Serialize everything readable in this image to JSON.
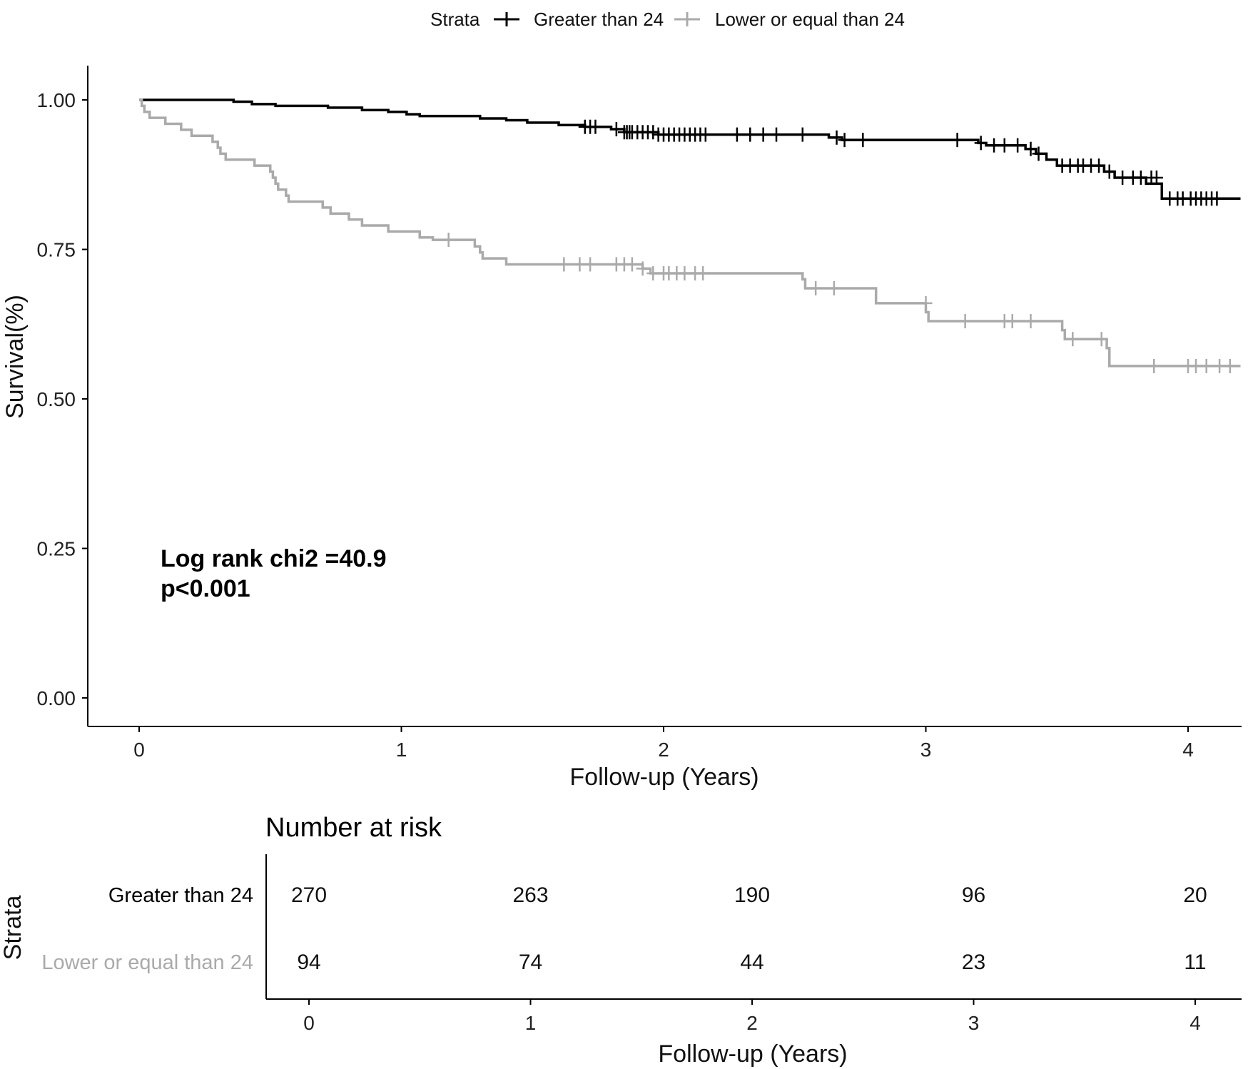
{
  "chart_data": {
    "type": "line",
    "subtype": "kaplan-meier",
    "legend": {
      "title": "Strata",
      "placement": "top",
      "entries": [
        "Greater than 24",
        "Lower or equal than 24"
      ]
    },
    "ylabel": "Survival(%)",
    "xlabel": "Follow-up (Years)",
    "xlim": [
      -0.2,
      4.2
    ],
    "ylim": [
      -0.05,
      1.05
    ],
    "x_ticks": [
      "0",
      "1",
      "2",
      "3",
      "4"
    ],
    "y_ticks": [
      "0.00",
      "0.25",
      "0.50",
      "0.75",
      "1.00"
    ],
    "series": [
      {
        "name": "Greater than 24",
        "color": "#000000",
        "steps": [
          [
            0,
            1.0
          ],
          [
            0.36,
            0.997
          ],
          [
            0.43,
            0.993
          ],
          [
            0.52,
            0.99
          ],
          [
            0.72,
            0.987
          ],
          [
            0.85,
            0.983
          ],
          [
            0.95,
            0.98
          ],
          [
            1.02,
            0.976
          ],
          [
            1.07,
            0.973
          ],
          [
            1.3,
            0.969
          ],
          [
            1.4,
            0.966
          ],
          [
            1.48,
            0.962
          ],
          [
            1.6,
            0.958
          ],
          [
            1.7,
            0.955
          ],
          [
            1.8,
            0.951
          ],
          [
            1.85,
            0.946
          ],
          [
            1.98,
            0.942
          ],
          [
            2.55,
            0.942
          ],
          [
            2.63,
            0.937
          ],
          [
            2.68,
            0.933
          ],
          [
            3.2,
            0.928
          ],
          [
            3.23,
            0.924
          ],
          [
            3.38,
            0.918
          ],
          [
            3.42,
            0.91
          ],
          [
            3.46,
            0.9
          ],
          [
            3.5,
            0.89
          ],
          [
            3.68,
            0.88
          ],
          [
            3.72,
            0.87
          ],
          [
            3.84,
            0.86
          ],
          [
            3.9,
            0.835
          ],
          [
            4.2,
            0.835
          ]
        ],
        "censored": [
          [
            1.7,
            0.955
          ],
          [
            1.72,
            0.955
          ],
          [
            1.74,
            0.955
          ],
          [
            1.82,
            0.951
          ],
          [
            1.85,
            0.946
          ],
          [
            1.86,
            0.946
          ],
          [
            1.87,
            0.946
          ],
          [
            1.88,
            0.946
          ],
          [
            1.9,
            0.946
          ],
          [
            1.92,
            0.946
          ],
          [
            1.94,
            0.946
          ],
          [
            1.96,
            0.946
          ],
          [
            1.98,
            0.942
          ],
          [
            2.0,
            0.942
          ],
          [
            2.02,
            0.942
          ],
          [
            2.04,
            0.942
          ],
          [
            2.06,
            0.942
          ],
          [
            2.08,
            0.942
          ],
          [
            2.1,
            0.942
          ],
          [
            2.12,
            0.942
          ],
          [
            2.14,
            0.942
          ],
          [
            2.16,
            0.942
          ],
          [
            2.28,
            0.942
          ],
          [
            2.33,
            0.942
          ],
          [
            2.38,
            0.942
          ],
          [
            2.43,
            0.942
          ],
          [
            2.53,
            0.942
          ],
          [
            2.66,
            0.937
          ],
          [
            2.69,
            0.933
          ],
          [
            2.76,
            0.933
          ],
          [
            3.12,
            0.933
          ],
          [
            3.21,
            0.928
          ],
          [
            3.26,
            0.924
          ],
          [
            3.3,
            0.924
          ],
          [
            3.35,
            0.924
          ],
          [
            3.4,
            0.918
          ],
          [
            3.43,
            0.91
          ],
          [
            3.52,
            0.89
          ],
          [
            3.55,
            0.89
          ],
          [
            3.58,
            0.89
          ],
          [
            3.6,
            0.89
          ],
          [
            3.63,
            0.89
          ],
          [
            3.66,
            0.89
          ],
          [
            3.7,
            0.88
          ],
          [
            3.75,
            0.87
          ],
          [
            3.79,
            0.87
          ],
          [
            3.82,
            0.87
          ],
          [
            3.86,
            0.87
          ],
          [
            3.88,
            0.87
          ],
          [
            3.93,
            0.835
          ],
          [
            3.96,
            0.835
          ],
          [
            3.98,
            0.835
          ],
          [
            4.01,
            0.835
          ],
          [
            4.03,
            0.835
          ],
          [
            4.05,
            0.835
          ],
          [
            4.07,
            0.835
          ],
          [
            4.09,
            0.835
          ],
          [
            4.11,
            0.835
          ]
        ]
      },
      {
        "name": "Lower or equal than 24",
        "color": "#aaaaaa",
        "steps": [
          [
            0,
            1.0
          ],
          [
            0.01,
            0.99
          ],
          [
            0.02,
            0.98
          ],
          [
            0.04,
            0.97
          ],
          [
            0.1,
            0.96
          ],
          [
            0.16,
            0.95
          ],
          [
            0.2,
            0.94
          ],
          [
            0.28,
            0.93
          ],
          [
            0.3,
            0.92
          ],
          [
            0.31,
            0.91
          ],
          [
            0.33,
            0.9
          ],
          [
            0.44,
            0.89
          ],
          [
            0.5,
            0.88
          ],
          [
            0.51,
            0.87
          ],
          [
            0.52,
            0.86
          ],
          [
            0.53,
            0.85
          ],
          [
            0.56,
            0.84
          ],
          [
            0.57,
            0.83
          ],
          [
            0.7,
            0.82
          ],
          [
            0.73,
            0.81
          ],
          [
            0.8,
            0.8
          ],
          [
            0.85,
            0.79
          ],
          [
            0.95,
            0.78
          ],
          [
            1.07,
            0.77
          ],
          [
            1.12,
            0.766
          ],
          [
            1.28,
            0.755
          ],
          [
            1.3,
            0.745
          ],
          [
            1.31,
            0.735
          ],
          [
            1.4,
            0.725
          ],
          [
            1.92,
            0.718
          ],
          [
            1.95,
            0.71
          ],
          [
            2.53,
            0.7
          ],
          [
            2.54,
            0.685
          ],
          [
            2.81,
            0.66
          ],
          [
            3.0,
            0.645
          ],
          [
            3.01,
            0.63
          ],
          [
            3.52,
            0.615
          ],
          [
            3.53,
            0.6
          ],
          [
            3.69,
            0.585
          ],
          [
            3.7,
            0.555
          ],
          [
            4.2,
            0.555
          ]
        ],
        "censored": [
          [
            1.18,
            0.766
          ],
          [
            1.62,
            0.725
          ],
          [
            1.68,
            0.725
          ],
          [
            1.72,
            0.725
          ],
          [
            1.82,
            0.725
          ],
          [
            1.85,
            0.725
          ],
          [
            1.88,
            0.725
          ],
          [
            1.92,
            0.718
          ],
          [
            1.96,
            0.71
          ],
          [
            2.0,
            0.71
          ],
          [
            2.02,
            0.71
          ],
          [
            2.05,
            0.71
          ],
          [
            2.08,
            0.71
          ],
          [
            2.12,
            0.71
          ],
          [
            2.15,
            0.71
          ],
          [
            2.58,
            0.685
          ],
          [
            2.65,
            0.685
          ],
          [
            3.0,
            0.66
          ],
          [
            3.15,
            0.63
          ],
          [
            3.3,
            0.63
          ],
          [
            3.33,
            0.63
          ],
          [
            3.4,
            0.63
          ],
          [
            3.56,
            0.6
          ],
          [
            3.67,
            0.6
          ],
          [
            3.87,
            0.555
          ],
          [
            4.0,
            0.555
          ],
          [
            4.03,
            0.555
          ],
          [
            4.07,
            0.555
          ],
          [
            4.12,
            0.555
          ],
          [
            4.16,
            0.555
          ]
        ]
      }
    ],
    "annotations": [
      "Log rank chi2 =40.9",
      "p<0.001"
    ]
  },
  "risk_table": {
    "title": "Number at risk",
    "y_title": "Strata",
    "x_title": "Follow-up (Years)",
    "x_ticks": [
      "0",
      "1",
      "2",
      "3",
      "4"
    ],
    "rows": [
      {
        "label": "Greater than 24",
        "color": "#000000",
        "values": [
          "270",
          "263",
          "190",
          "96",
          "20"
        ]
      },
      {
        "label": "Lower or equal than 24",
        "color": "#aaaaaa",
        "values": [
          "94",
          "74",
          "44",
          "23",
          "11"
        ]
      }
    ]
  }
}
